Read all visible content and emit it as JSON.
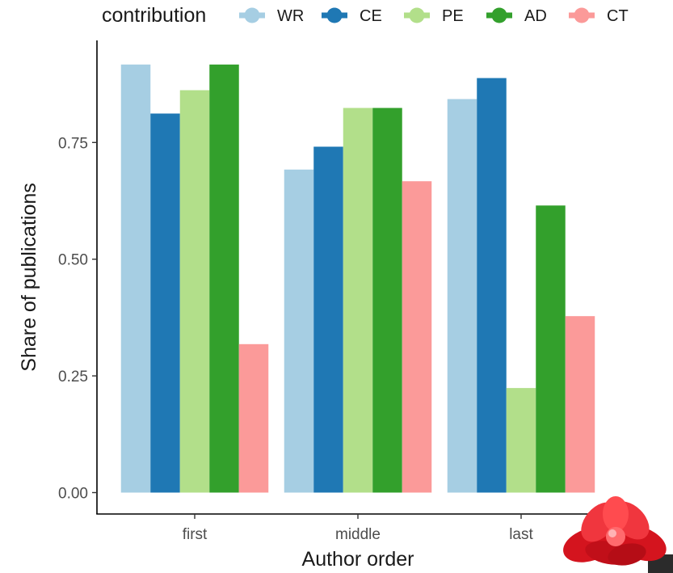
{
  "chart_data": {
    "type": "bar",
    "xlabel": "Author order",
    "ylabel": "Share of publications",
    "categories": [
      "first",
      "middle",
      "last"
    ],
    "ylim": [
      0,
      0.925
    ],
    "yticks": [
      0.0,
      0.25,
      0.5,
      0.75
    ],
    "ytick_labels": [
      "0.00",
      "0.25",
      "0.50",
      "0.75"
    ],
    "legend": {
      "title": "contribution",
      "position": "top"
    },
    "grid": false,
    "series": [
      {
        "name": "WR",
        "color": "#a6cee3",
        "values": [
          0.917,
          0.692,
          0.843
        ]
      },
      {
        "name": "CE",
        "color": "#1f78b4",
        "values": [
          0.812,
          0.741,
          0.888
        ]
      },
      {
        "name": "PE",
        "color": "#b2df8a",
        "values": [
          0.862,
          0.824,
          0.224
        ]
      },
      {
        "name": "AD",
        "color": "#33a02c",
        "values": [
          0.917,
          0.824,
          0.615
        ]
      },
      {
        "name": "CT",
        "color": "#fb9a99",
        "values": [
          0.318,
          0.667,
          0.378
        ]
      }
    ]
  },
  "decoration": {
    "icon": "gift-bow-icon",
    "color": "#e8202a"
  }
}
